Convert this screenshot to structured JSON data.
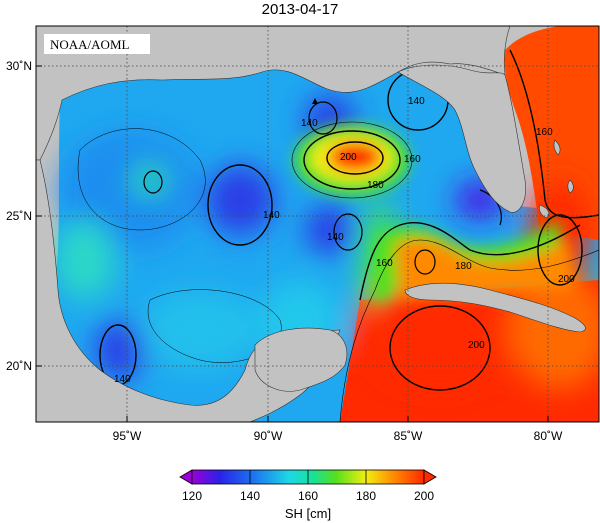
{
  "title": "2013-04-17",
  "credit": "NOAA/AOML",
  "axes": {
    "lon_ticks": [
      "95˚W",
      "90˚W",
      "85˚W",
      "80˚W"
    ],
    "lat_ticks": [
      "30˚N",
      "25˚N",
      "20˚N"
    ]
  },
  "contour_labels": [
    "140",
    "140",
    "140",
    "140",
    "140",
    "160",
    "160",
    "160",
    "180",
    "180",
    "200",
    "200",
    "200"
  ],
  "colorbar": {
    "ticks": [
      "120",
      "140",
      "160",
      "180",
      "200"
    ],
    "label": "SH [cm]",
    "colors": [
      "#9a00d8",
      "#2a22e8",
      "#1b78f0",
      "#1fd8e6",
      "#18e09a",
      "#55e01e",
      "#f2ee12",
      "#ff8a00",
      "#ff2a00"
    ]
  },
  "legend_colors": {
    "land": "#c2c2c2",
    "low": "#2a3fe6",
    "mid": "#1fa0f0",
    "cyan": "#22d7e8",
    "high": "#ff2a00",
    "orange": "#ff8c00"
  }
}
